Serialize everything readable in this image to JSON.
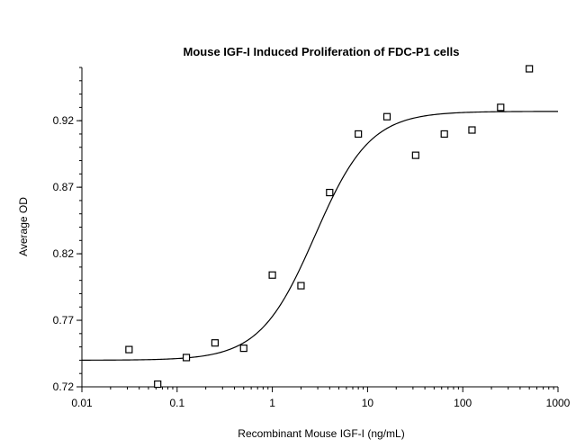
{
  "chart_data": {
    "type": "scatter",
    "title": "Mouse IGF-I Induced Proliferation of FDC-P1 cells",
    "xlabel": "Recombinant Mouse IGF-I (ng/mL)",
    "ylabel": "Average OD",
    "x_scale": "log",
    "xlim": [
      0.01,
      1000
    ],
    "ylim": [
      0.72,
      0.96
    ],
    "x_ticks": [
      "0.01",
      "0.1",
      "1",
      "10",
      "100",
      "1000"
    ],
    "y_ticks": [
      "0.72",
      "0.77",
      "0.82",
      "0.87",
      "0.92"
    ],
    "grid": false,
    "series": [
      {
        "marker": "open-square",
        "points": [
          {
            "x": 0.03125,
            "y": 0.748
          },
          {
            "x": 0.0625,
            "y": 0.722
          },
          {
            "x": 0.125,
            "y": 0.742
          },
          {
            "x": 0.25,
            "y": 0.753
          },
          {
            "x": 0.5,
            "y": 0.749
          },
          {
            "x": 1,
            "y": 0.804
          },
          {
            "x": 2,
            "y": 0.796
          },
          {
            "x": 4,
            "y": 0.866
          },
          {
            "x": 8,
            "y": 0.91
          },
          {
            "x": 16,
            "y": 0.923
          },
          {
            "x": 32,
            "y": 0.894
          },
          {
            "x": 64,
            "y": 0.91
          },
          {
            "x": 125,
            "y": 0.913
          },
          {
            "x": 250,
            "y": 0.93
          },
          {
            "x": 500,
            "y": 0.959
          }
        ]
      }
    ],
    "fit_curve": {
      "model": "4PL",
      "bottom": 0.74,
      "top": 0.927,
      "ec50": 2.8,
      "hill": 1.5
    }
  }
}
